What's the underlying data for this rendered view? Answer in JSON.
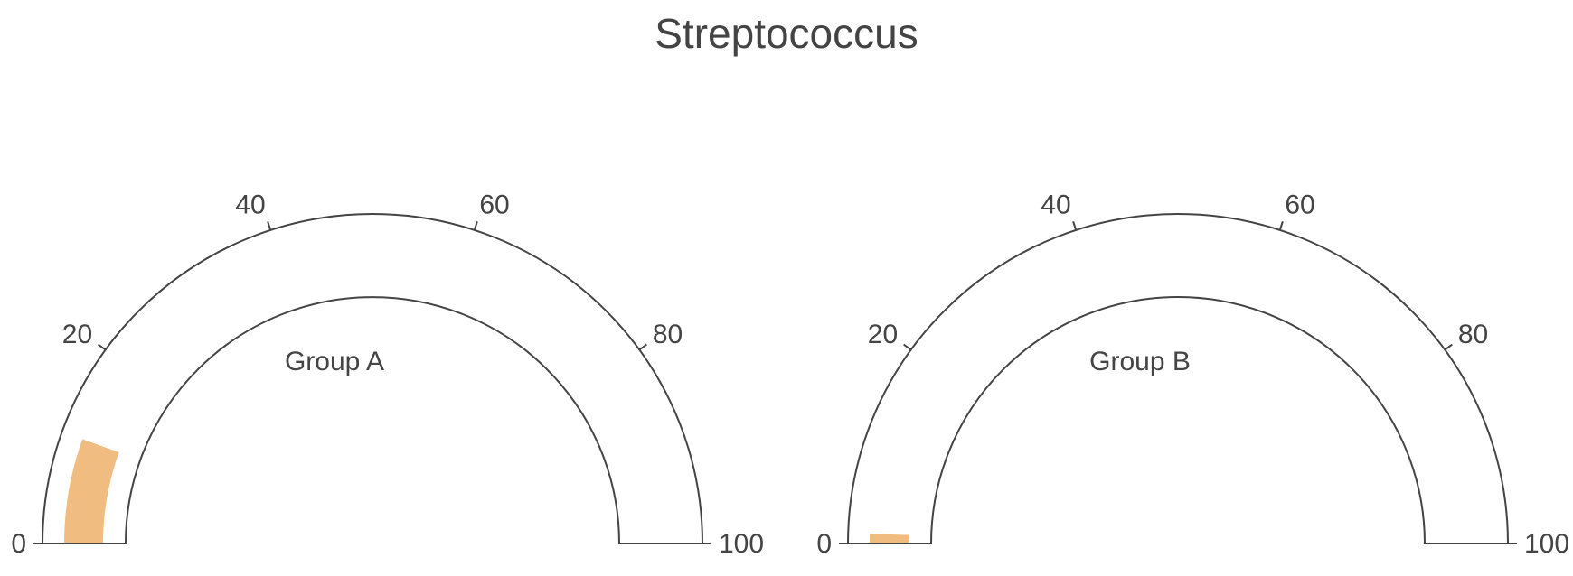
{
  "chart_data": {
    "type": "gauge",
    "title": "Streptococcus",
    "range": [
      0,
      100
    ],
    "ticks": [
      0,
      20,
      40,
      60,
      80,
      100
    ],
    "bar_color": "#F0BC7F",
    "outline_color": "#444444",
    "gauges": [
      {
        "name": "Group A",
        "value": 11
      },
      {
        "name": "Group B",
        "value": 1
      }
    ]
  }
}
